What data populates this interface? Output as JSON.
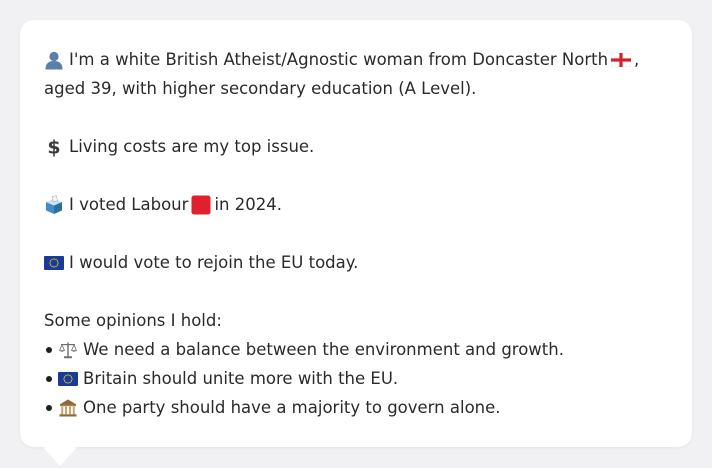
{
  "profile": {
    "intro": "I'm a white British Atheist/Agnostic woman from Doncaster North",
    "intro_tail": ",",
    "intro_line2": "aged 39, with higher secondary education (A Level).",
    "intro_icon": "person-icon",
    "flag_icon": "england-flag-icon"
  },
  "issue": {
    "text": "Living costs are my top issue.",
    "icon": "dollar-icon"
  },
  "vote": {
    "text_before": "I voted Labour",
    "text_after": "in 2024.",
    "icon": "ballot-box-icon",
    "party_icon": "red-square-icon",
    "party_color": "#e0202c"
  },
  "eu": {
    "text": "I would vote to rejoin the EU today.",
    "icon": "eu-flag-icon",
    "eu_color": "#1a3a9a"
  },
  "opinions": {
    "heading": "Some opinions I hold:",
    "items": [
      {
        "text": "We need a balance between the environment and growth.",
        "icon": "balance-scale-icon"
      },
      {
        "text": "Britain should unite more with the EU.",
        "icon": "eu-flag-icon"
      },
      {
        "text": "One party should have a majority to govern alone.",
        "icon": "classical-building-icon"
      }
    ]
  }
}
